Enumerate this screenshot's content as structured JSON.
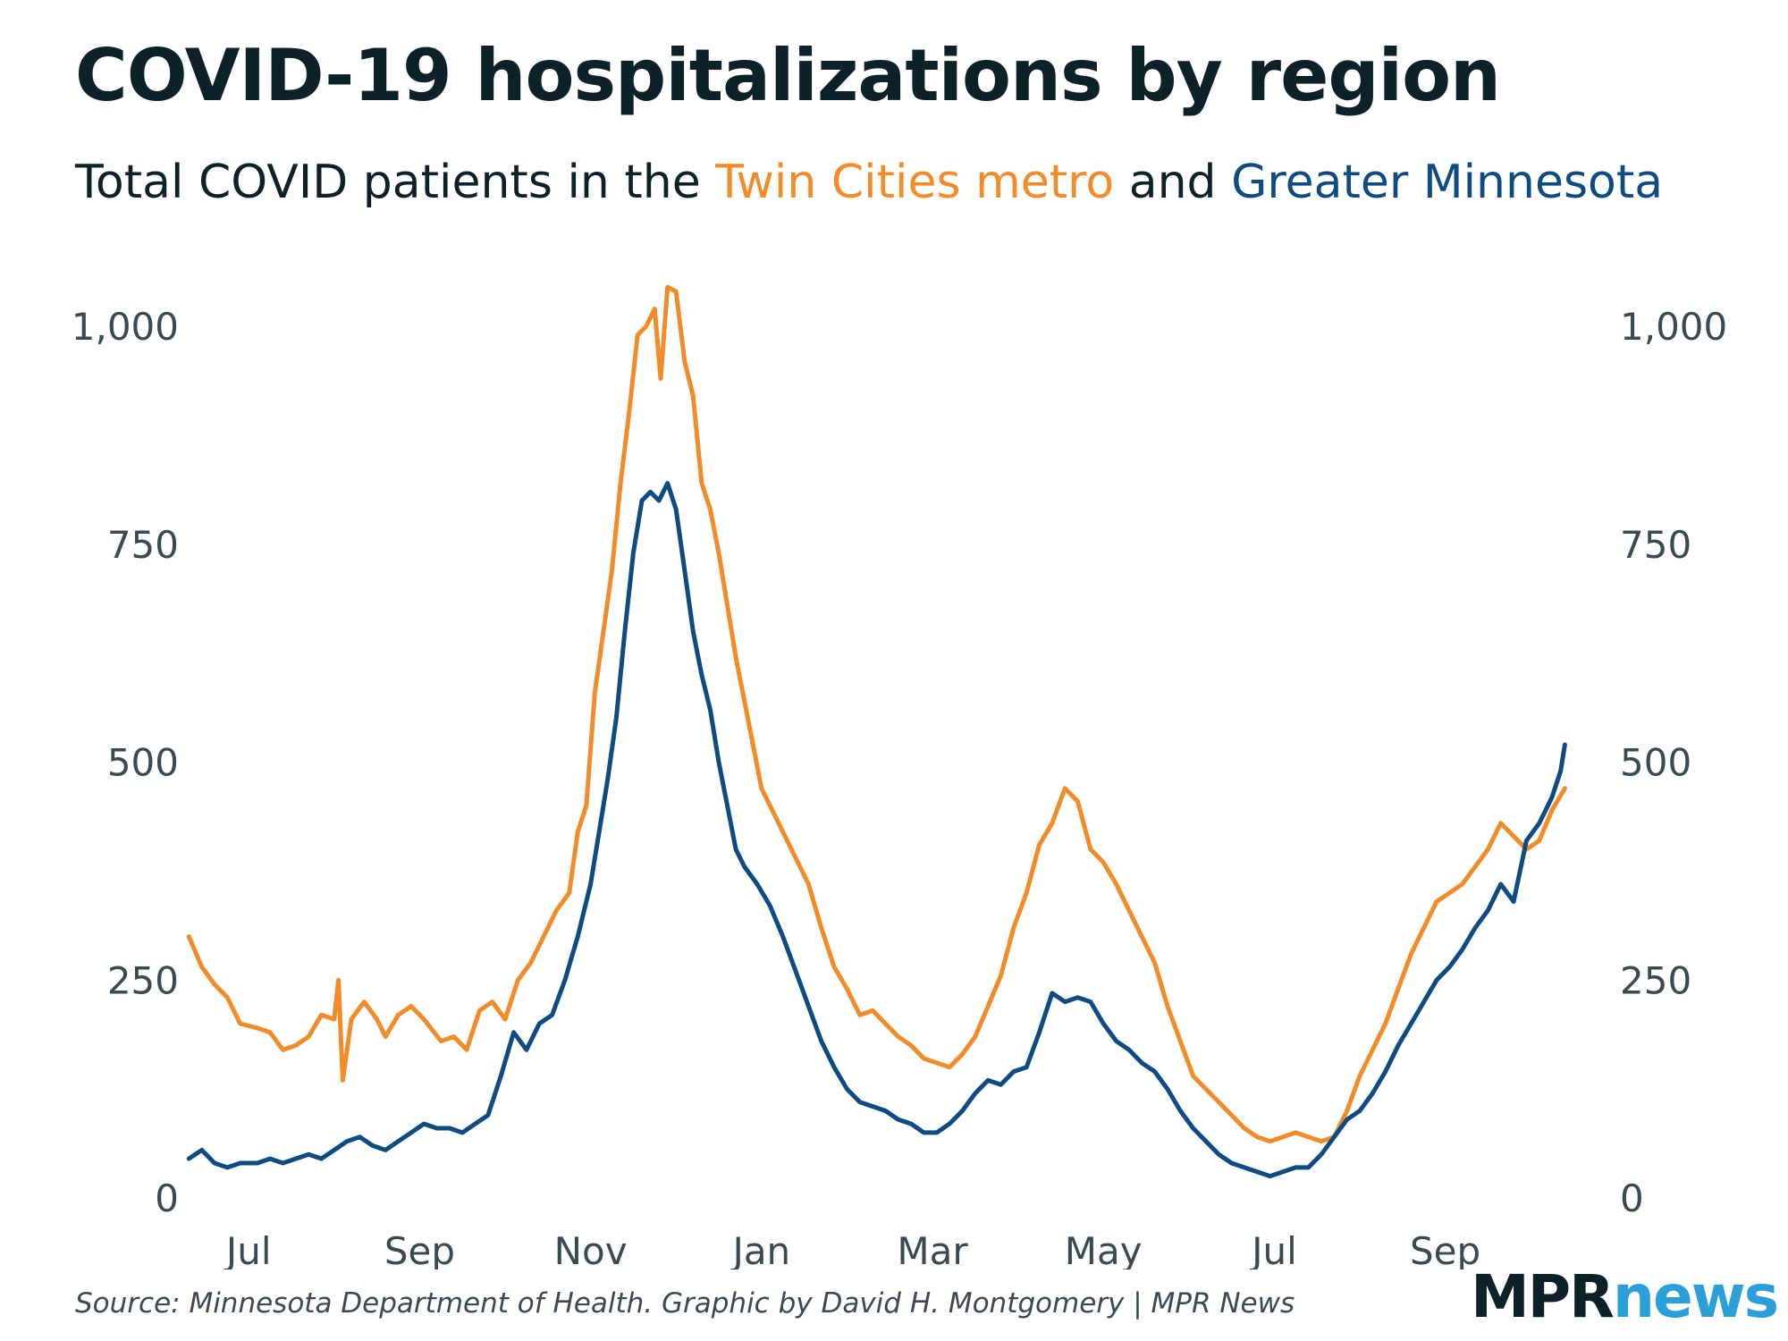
{
  "title": "COVID-19 hospitalizations by region",
  "subtitle": {
    "prefix": "Total COVID patients in the ",
    "metro": "Twin Cities metro",
    "middle": " and ",
    "greater": "Greater Minnesota"
  },
  "source": "Source: Minnesota Department of Health. Graphic by David H. Montgomery | MPR News",
  "logo": {
    "part1": "MPR",
    "part2": "news"
  },
  "colors": {
    "metro": "#f28c28",
    "greater": "#0e4b82",
    "text": "#0d2129",
    "tick": "#3a4a52",
    "logo_accent": "#2a9fd8"
  },
  "chart_data": {
    "type": "line",
    "title": "COVID-19 hospitalizations by region",
    "xlabel": "",
    "ylabel": "",
    "ylim": [
      0,
      1000
    ],
    "xlim": [
      -0.4,
      15.5
    ],
    "grid": false,
    "y_ticks": [
      0,
      250,
      500,
      750,
      1000
    ],
    "y_tick_labels": [
      "0",
      "250",
      "500",
      "750",
      "1,000"
    ],
    "x_ticks": [
      0,
      2,
      4,
      6,
      8,
      10,
      12,
      14
    ],
    "x_tick_labels": [
      "Jul",
      "Sep",
      "Nov",
      "Jan",
      "Mar",
      "May",
      "Jul",
      "Sep"
    ],
    "x_unit": "months since July 2020",
    "series": [
      {
        "name": "Twin Cities metro",
        "color": "#f28c28",
        "points": [
          [
            -0.7,
            300
          ],
          [
            -0.55,
            265
          ],
          [
            -0.4,
            245
          ],
          [
            -0.25,
            230
          ],
          [
            -0.1,
            200
          ],
          [
            0.1,
            195
          ],
          [
            0.25,
            190
          ],
          [
            0.4,
            170
          ],
          [
            0.55,
            175
          ],
          [
            0.7,
            185
          ],
          [
            0.85,
            210
          ],
          [
            1.0,
            205
          ],
          [
            1.05,
            250
          ],
          [
            1.1,
            135
          ],
          [
            1.2,
            205
          ],
          [
            1.35,
            225
          ],
          [
            1.5,
            205
          ],
          [
            1.6,
            185
          ],
          [
            1.75,
            210
          ],
          [
            1.9,
            220
          ],
          [
            2.05,
            205
          ],
          [
            2.25,
            180
          ],
          [
            2.4,
            185
          ],
          [
            2.55,
            170
          ],
          [
            2.7,
            215
          ],
          [
            2.85,
            225
          ],
          [
            3.0,
            205
          ],
          [
            3.15,
            250
          ],
          [
            3.3,
            270
          ],
          [
            3.45,
            300
          ],
          [
            3.6,
            330
          ],
          [
            3.75,
            350
          ],
          [
            3.85,
            420
          ],
          [
            3.95,
            450
          ],
          [
            4.05,
            580
          ],
          [
            4.15,
            650
          ],
          [
            4.25,
            720
          ],
          [
            4.35,
            820
          ],
          [
            4.45,
            900
          ],
          [
            4.55,
            990
          ],
          [
            4.65,
            1000
          ],
          [
            4.75,
            1020
          ],
          [
            4.82,
            940
          ],
          [
            4.9,
            1045
          ],
          [
            5.0,
            1040
          ],
          [
            5.1,
            960
          ],
          [
            5.2,
            920
          ],
          [
            5.3,
            820
          ],
          [
            5.4,
            790
          ],
          [
            5.5,
            740
          ],
          [
            5.6,
            680
          ],
          [
            5.7,
            620
          ],
          [
            5.8,
            570
          ],
          [
            5.9,
            520
          ],
          [
            6.0,
            470
          ],
          [
            6.1,
            450
          ],
          [
            6.25,
            420
          ],
          [
            6.4,
            390
          ],
          [
            6.55,
            360
          ],
          [
            6.7,
            310
          ],
          [
            6.85,
            265
          ],
          [
            7.0,
            240
          ],
          [
            7.15,
            210
          ],
          [
            7.3,
            215
          ],
          [
            7.45,
            200
          ],
          [
            7.6,
            185
          ],
          [
            7.75,
            175
          ],
          [
            7.9,
            160
          ],
          [
            8.05,
            155
          ],
          [
            8.2,
            150
          ],
          [
            8.35,
            165
          ],
          [
            8.5,
            185
          ],
          [
            8.65,
            220
          ],
          [
            8.8,
            255
          ],
          [
            8.95,
            310
          ],
          [
            9.1,
            350
          ],
          [
            9.25,
            405
          ],
          [
            9.4,
            430
          ],
          [
            9.55,
            470
          ],
          [
            9.7,
            455
          ],
          [
            9.85,
            400
          ],
          [
            10.0,
            385
          ],
          [
            10.15,
            360
          ],
          [
            10.3,
            330
          ],
          [
            10.45,
            300
          ],
          [
            10.6,
            270
          ],
          [
            10.75,
            220
          ],
          [
            10.9,
            180
          ],
          [
            11.05,
            140
          ],
          [
            11.2,
            125
          ],
          [
            11.35,
            110
          ],
          [
            11.5,
            95
          ],
          [
            11.65,
            80
          ],
          [
            11.8,
            70
          ],
          [
            11.95,
            65
          ],
          [
            12.1,
            70
          ],
          [
            12.25,
            75
          ],
          [
            12.4,
            70
          ],
          [
            12.55,
            65
          ],
          [
            12.7,
            70
          ],
          [
            12.85,
            100
          ],
          [
            13.0,
            140
          ],
          [
            13.15,
            170
          ],
          [
            13.3,
            200
          ],
          [
            13.45,
            240
          ],
          [
            13.6,
            280
          ],
          [
            13.75,
            310
          ],
          [
            13.9,
            340
          ],
          [
            14.05,
            350
          ],
          [
            14.2,
            360
          ],
          [
            14.35,
            380
          ],
          [
            14.5,
            400
          ],
          [
            14.65,
            430
          ],
          [
            14.8,
            415
          ],
          [
            14.95,
            400
          ],
          [
            15.1,
            410
          ],
          [
            15.25,
            445
          ],
          [
            15.4,
            470
          ]
        ]
      },
      {
        "name": "Greater Minnesota",
        "color": "#0e4b82",
        "points": [
          [
            -0.7,
            45
          ],
          [
            -0.55,
            55
          ],
          [
            -0.4,
            40
          ],
          [
            -0.25,
            35
          ],
          [
            -0.1,
            40
          ],
          [
            0.1,
            40
          ],
          [
            0.25,
            45
          ],
          [
            0.4,
            40
          ],
          [
            0.55,
            45
          ],
          [
            0.7,
            50
          ],
          [
            0.85,
            45
          ],
          [
            1.0,
            55
          ],
          [
            1.15,
            65
          ],
          [
            1.3,
            70
          ],
          [
            1.45,
            60
          ],
          [
            1.6,
            55
          ],
          [
            1.75,
            65
          ],
          [
            1.9,
            75
          ],
          [
            2.05,
            85
          ],
          [
            2.2,
            80
          ],
          [
            2.35,
            80
          ],
          [
            2.5,
            75
          ],
          [
            2.65,
            85
          ],
          [
            2.8,
            95
          ],
          [
            2.95,
            140
          ],
          [
            3.1,
            190
          ],
          [
            3.25,
            170
          ],
          [
            3.4,
            200
          ],
          [
            3.55,
            210
          ],
          [
            3.7,
            250
          ],
          [
            3.85,
            300
          ],
          [
            4.0,
            360
          ],
          [
            4.1,
            420
          ],
          [
            4.2,
            480
          ],
          [
            4.3,
            550
          ],
          [
            4.4,
            650
          ],
          [
            4.5,
            740
          ],
          [
            4.6,
            800
          ],
          [
            4.7,
            810
          ],
          [
            4.8,
            800
          ],
          [
            4.9,
            820
          ],
          [
            5.0,
            790
          ],
          [
            5.1,
            720
          ],
          [
            5.2,
            650
          ],
          [
            5.3,
            600
          ],
          [
            5.4,
            560
          ],
          [
            5.5,
            500
          ],
          [
            5.6,
            450
          ],
          [
            5.7,
            400
          ],
          [
            5.8,
            380
          ],
          [
            5.95,
            360
          ],
          [
            6.1,
            335
          ],
          [
            6.25,
            300
          ],
          [
            6.4,
            260
          ],
          [
            6.55,
            220
          ],
          [
            6.7,
            180
          ],
          [
            6.85,
            150
          ],
          [
            7.0,
            125
          ],
          [
            7.15,
            110
          ],
          [
            7.3,
            105
          ],
          [
            7.45,
            100
          ],
          [
            7.6,
            90
          ],
          [
            7.75,
            85
          ],
          [
            7.9,
            75
          ],
          [
            8.05,
            75
          ],
          [
            8.2,
            85
          ],
          [
            8.35,
            100
          ],
          [
            8.5,
            120
          ],
          [
            8.65,
            135
          ],
          [
            8.8,
            130
          ],
          [
            8.95,
            145
          ],
          [
            9.1,
            150
          ],
          [
            9.25,
            190
          ],
          [
            9.4,
            235
          ],
          [
            9.55,
            225
          ],
          [
            9.7,
            230
          ],
          [
            9.85,
            225
          ],
          [
            10.0,
            200
          ],
          [
            10.15,
            180
          ],
          [
            10.3,
            170
          ],
          [
            10.45,
            155
          ],
          [
            10.6,
            145
          ],
          [
            10.75,
            125
          ],
          [
            10.9,
            100
          ],
          [
            11.05,
            80
          ],
          [
            11.2,
            65
          ],
          [
            11.35,
            50
          ],
          [
            11.5,
            40
          ],
          [
            11.65,
            35
          ],
          [
            11.8,
            30
          ],
          [
            11.95,
            25
          ],
          [
            12.1,
            30
          ],
          [
            12.25,
            35
          ],
          [
            12.4,
            35
          ],
          [
            12.55,
            50
          ],
          [
            12.7,
            70
          ],
          [
            12.85,
            90
          ],
          [
            13.0,
            100
          ],
          [
            13.15,
            120
          ],
          [
            13.3,
            145
          ],
          [
            13.45,
            175
          ],
          [
            13.6,
            200
          ],
          [
            13.75,
            225
          ],
          [
            13.9,
            250
          ],
          [
            14.05,
            265
          ],
          [
            14.2,
            285
          ],
          [
            14.35,
            310
          ],
          [
            14.5,
            330
          ],
          [
            14.65,
            360
          ],
          [
            14.8,
            340
          ],
          [
            14.95,
            410
          ],
          [
            15.1,
            430
          ],
          [
            15.25,
            460
          ],
          [
            15.35,
            490
          ],
          [
            15.4,
            520
          ]
        ]
      }
    ]
  }
}
